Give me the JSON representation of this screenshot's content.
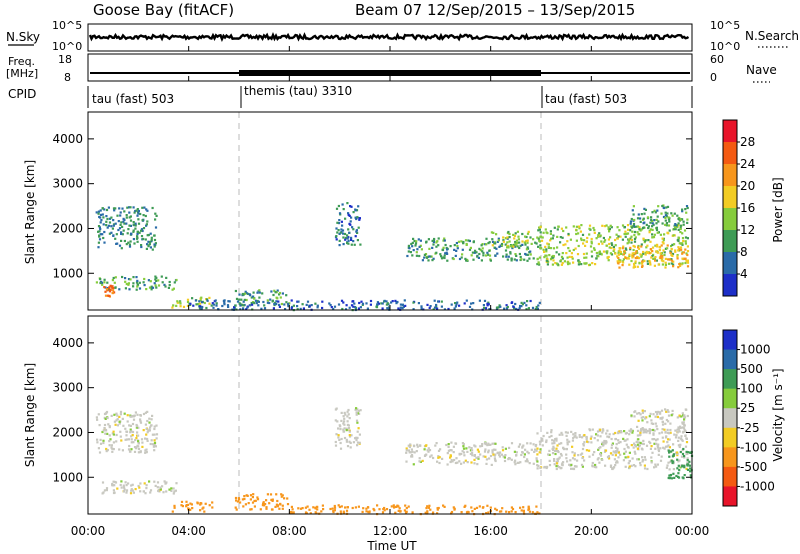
{
  "header": {
    "station": "Goose Bay (fitACF)",
    "beam": "Beam 07",
    "dates": "12/Sep/2015 – 13/Sep/2015"
  },
  "labels": {
    "nsky": "N.Sky",
    "freq_top": "Freq.",
    "freq_unit": "[MHz]",
    "cpid": "CPID",
    "nsearch": "N.Search",
    "nave": "Nave",
    "time_ut": "Time UT",
    "slant_range": "Slant Range [km]",
    "power_unit": "Power [dB]",
    "velocity_unit": "Velocity [m s⁻¹]"
  },
  "chart_data": [
    {
      "type": "line",
      "name": "noise",
      "left_ticks": [
        "10^5",
        "10^0"
      ],
      "right_ticks": [
        "10^5",
        "10^0"
      ]
    },
    {
      "type": "line",
      "name": "frequency",
      "left_ticks": [
        "18",
        "8"
      ],
      "right_ticks": [
        "60",
        "0"
      ],
      "nave_ticks": [
        "60",
        "0"
      ]
    },
    {
      "type": "table",
      "name": "cpid",
      "segments": [
        {
          "label": "tau (fast) 503",
          "start_hour": 0,
          "end_hour": 6
        },
        {
          "label": "themis (tau) 3310",
          "start_hour": 6,
          "end_hour": 18
        },
        {
          "label": "tau (fast) 503",
          "start_hour": 18,
          "end_hour": 24
        }
      ]
    },
    {
      "type": "heatmap",
      "name": "power",
      "xlim": [
        0,
        24
      ],
      "ylim": [
        180,
        4600
      ],
      "x_ticks": [
        {
          "value": 0,
          "label": "00:00"
        },
        {
          "value": 4,
          "label": "04:00"
        },
        {
          "value": 8,
          "label": "08:00"
        },
        {
          "value": 12,
          "label": "12:00"
        },
        {
          "value": 16,
          "label": "16:00"
        },
        {
          "value": 20,
          "label": "20:00"
        },
        {
          "value": 24,
          "label": "00:00"
        }
      ],
      "y_ticks": [
        1000,
        2000,
        3000,
        4000
      ],
      "colorbar": {
        "ticks": [
          "28",
          "24",
          "20",
          "16",
          "12",
          "8",
          "4"
        ],
        "colors": [
          "#e8142a",
          "#f45a12",
          "#f7961c",
          "#f2cc24",
          "#86cc3c",
          "#3e9b55",
          "#2a6ba8",
          "#1d2fc8"
        ]
      },
      "regions": [
        {
          "t0": 0.3,
          "t1": 2.7,
          "r0": 1550,
          "r1": 2500,
          "power": 8
        },
        {
          "t0": 0.3,
          "t1": 3.5,
          "r0": 650,
          "r1": 950,
          "power": 10
        },
        {
          "t0": 0.6,
          "t1": 1.0,
          "r0": 500,
          "r1": 750,
          "power": 24
        },
        {
          "t0": 3.3,
          "t1": 4.9,
          "r0": 250,
          "r1": 480,
          "power": 14
        },
        {
          "t0": 5.8,
          "t1": 8.0,
          "r0": 300,
          "r1": 650,
          "power": 10
        },
        {
          "t0": 9.8,
          "t1": 10.8,
          "r0": 1650,
          "r1": 2600,
          "power": 6
        },
        {
          "t0": 12.6,
          "t1": 17.8,
          "r0": 1300,
          "r1": 1800,
          "power": 10
        },
        {
          "t0": 16.0,
          "t1": 17.6,
          "r0": 1600,
          "r1": 1950,
          "power": 14
        },
        {
          "t0": 17.8,
          "t1": 23.8,
          "r0": 1200,
          "r1": 2100,
          "power": 14
        },
        {
          "t0": 21.0,
          "t1": 23.8,
          "r0": 1150,
          "r1": 1650,
          "power": 20
        },
        {
          "t0": 21.5,
          "t1": 23.8,
          "r0": 2000,
          "r1": 2550,
          "power": 10
        },
        {
          "t0": 4.0,
          "t1": 18.0,
          "r0": 200,
          "r1": 420,
          "power": 6
        }
      ]
    },
    {
      "type": "heatmap",
      "name": "velocity",
      "xlim": [
        0,
        24
      ],
      "ylim": [
        180,
        4600
      ],
      "x_ticks": [
        {
          "value": 0,
          "label": "00:00"
        },
        {
          "value": 4,
          "label": "04:00"
        },
        {
          "value": 8,
          "label": "08:00"
        },
        {
          "value": 12,
          "label": "12:00"
        },
        {
          "value": 16,
          "label": "16:00"
        },
        {
          "value": 20,
          "label": "20:00"
        },
        {
          "value": 24,
          "label": "00:00"
        }
      ],
      "y_ticks": [
        1000,
        2000,
        3000,
        4000
      ],
      "colorbar": {
        "ticks": [
          "1000",
          "500",
          "100",
          "25",
          "-25",
          "-100",
          "-500",
          "-1000"
        ],
        "colors": [
          "#1d2fc8",
          "#2a6ba8",
          "#3e9b55",
          "#86cc3c",
          "#c8c8c0",
          "#f2cc24",
          "#f7961c",
          "#f45a12",
          "#e8142a"
        ]
      },
      "regions": [
        {
          "t0": 0.3,
          "t1": 2.7,
          "r0": 1550,
          "r1": 2500,
          "velocity": 0
        },
        {
          "t0": 0.3,
          "t1": 3.5,
          "r0": 650,
          "r1": 950,
          "velocity": 0
        },
        {
          "t0": 3.3,
          "t1": 4.9,
          "r0": 250,
          "r1": 480,
          "velocity": -300
        },
        {
          "t0": 5.8,
          "t1": 8.0,
          "r0": 300,
          "r1": 650,
          "velocity": -300
        },
        {
          "t0": 9.8,
          "t1": 10.8,
          "r0": 1650,
          "r1": 2600,
          "velocity": 0
        },
        {
          "t0": 12.6,
          "t1": 17.8,
          "r0": 1300,
          "r1": 1800,
          "velocity": 0
        },
        {
          "t0": 17.8,
          "t1": 23.8,
          "r0": 1200,
          "r1": 2100,
          "velocity": 0
        },
        {
          "t0": 21.5,
          "t1": 23.8,
          "r0": 2000,
          "r1": 2550,
          "velocity": 0
        },
        {
          "t0": 23.0,
          "t1": 24.0,
          "r0": 1000,
          "r1": 1700,
          "velocity": 150
        },
        {
          "t0": 8.0,
          "t1": 18.0,
          "r0": 200,
          "r1": 400,
          "velocity": -200
        }
      ]
    }
  ]
}
